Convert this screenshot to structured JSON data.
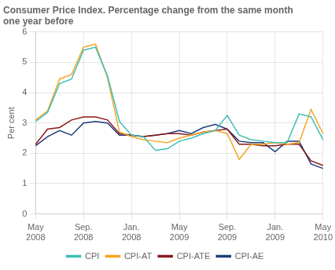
{
  "chart_data": {
    "type": "line",
    "title": "Consumer Price Index. Percentage change from the same month\none year before",
    "ylabel": "Per cent",
    "categories": [
      "May\n2008",
      null,
      null,
      null,
      "Sep.\n2008",
      null,
      null,
      null,
      "Jan.\n2008",
      null,
      null,
      null,
      "May\n2009",
      null,
      null,
      null,
      "Sep.\n2009",
      null,
      null,
      null,
      "Jan.\n2009",
      null,
      null,
      null,
      "May\n2010"
    ],
    "series": [
      {
        "name": "CPI",
        "color": "#3dbfb8",
        "values": [
          3.05,
          3.35,
          4.3,
          4.45,
          5.4,
          5.5,
          4.55,
          3.05,
          2.6,
          2.55,
          2.1,
          2.15,
          2.4,
          2.5,
          2.65,
          2.75,
          3.25,
          2.6,
          2.45,
          2.4,
          2.35,
          2.35,
          3.3,
          3.2,
          2.45
        ]
      },
      {
        "name": "CPI-AT",
        "color": "#f5a623",
        "values": [
          3.1,
          3.4,
          4.45,
          4.6,
          5.5,
          5.6,
          4.5,
          2.7,
          2.55,
          2.45,
          2.4,
          2.35,
          2.5,
          2.6,
          2.7,
          2.75,
          2.65,
          1.8,
          2.3,
          2.3,
          2.35,
          2.3,
          2.35,
          3.45,
          2.65
        ]
      },
      {
        "name": "CPI-ATE",
        "color": "#8b1a1a",
        "values": [
          2.3,
          2.8,
          2.85,
          3.1,
          3.2,
          3.2,
          3.1,
          2.65,
          2.6,
          2.55,
          2.6,
          2.65,
          2.65,
          2.6,
          2.7,
          2.75,
          2.8,
          2.3,
          2.3,
          2.25,
          2.25,
          2.3,
          2.3,
          1.75,
          1.6
        ]
      },
      {
        "name": "CPI-AE",
        "color": "#1f3c7d",
        "values": [
          2.25,
          2.55,
          2.75,
          2.6,
          3.0,
          3.05,
          3.0,
          2.6,
          2.6,
          2.55,
          2.6,
          2.65,
          2.75,
          2.65,
          2.85,
          2.95,
          2.8,
          2.4,
          2.35,
          2.35,
          2.05,
          2.4,
          2.4,
          1.65,
          1.5
        ]
      }
    ],
    "ylim": [
      0,
      6
    ],
    "yticks": [
      0,
      1,
      2,
      3,
      4,
      5,
      6
    ],
    "grid": true,
    "legend": "bottom"
  }
}
